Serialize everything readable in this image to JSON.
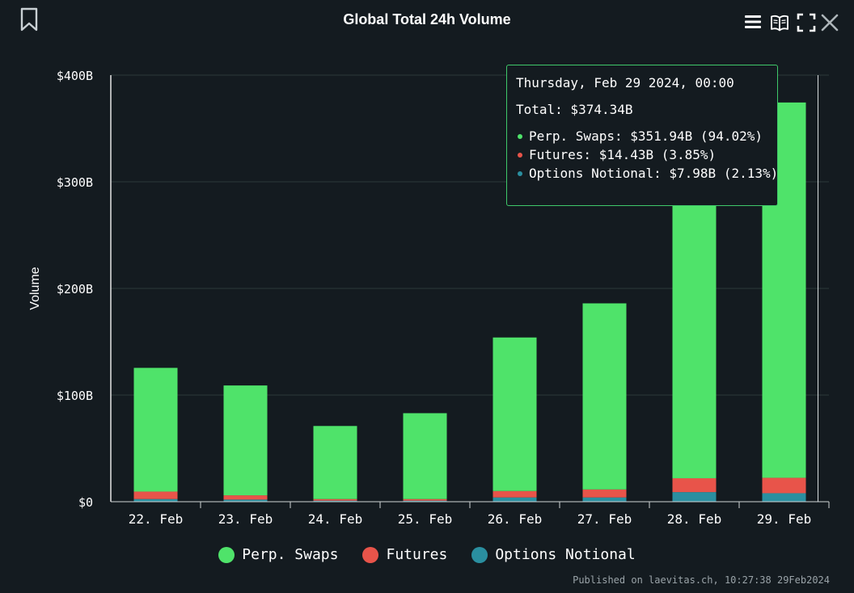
{
  "header": {
    "title": "Global Total 24h Volume"
  },
  "icons": {
    "bookmark": "bookmark-icon",
    "menu": "hamburger-menu-icon",
    "book": "book-icon",
    "fullscreen": "fullscreen-icon",
    "close": "close-icon"
  },
  "tooltip": {
    "date": "Thursday, Feb 29 2024, 00:00",
    "total": "Total: $374.34B",
    "rows": [
      {
        "text": "Perp. Swaps: $351.94B (94.02%)",
        "color": "#4fe36a"
      },
      {
        "text": "Futures: $14.43B (3.85%)",
        "color": "#e8544a"
      },
      {
        "text": "Options Notional: $7.98B (2.13%)",
        "color": "#2a8fa0"
      }
    ]
  },
  "legend": [
    {
      "label": "Perp. Swaps",
      "color": "#4fe36a"
    },
    {
      "label": "Futures",
      "color": "#e8544a"
    },
    {
      "label": "Options Notional",
      "color": "#2a8fa0"
    }
  ],
  "credit": "Published on laevitas.ch, 10:27:38 29Feb2024",
  "chart_data": {
    "type": "bar",
    "stacked": true,
    "title": "Global Total 24h Volume",
    "xlabel": "",
    "ylabel": "Volume",
    "ylim": [
      0,
      400
    ],
    "yticks": [
      0,
      100,
      200,
      300,
      400
    ],
    "ytick_labels": [
      "$0",
      "$100B",
      "$200B",
      "$300B",
      "$400B"
    ],
    "categories": [
      "22. Feb",
      "23. Feb",
      "24. Feb",
      "25. Feb",
      "26. Feb",
      "27. Feb",
      "28. Feb",
      "29. Feb"
    ],
    "series": [
      {
        "name": "Options Notional",
        "color": "#2a8fa0",
        "values": [
          2.5,
          2,
          1,
          1,
          4,
          4,
          9,
          7.98
        ]
      },
      {
        "name": "Futures",
        "color": "#e8544a",
        "values": [
          7,
          4,
          1.5,
          1.5,
          6,
          7.5,
          13,
          14.43
        ]
      },
      {
        "name": "Perp. Swaps",
        "color": "#4fe36a",
        "values": [
          116,
          103,
          68.5,
          80.5,
          144,
          174.5,
          277,
          351.94
        ]
      }
    ],
    "grid": true,
    "legend_position": "bottom"
  }
}
